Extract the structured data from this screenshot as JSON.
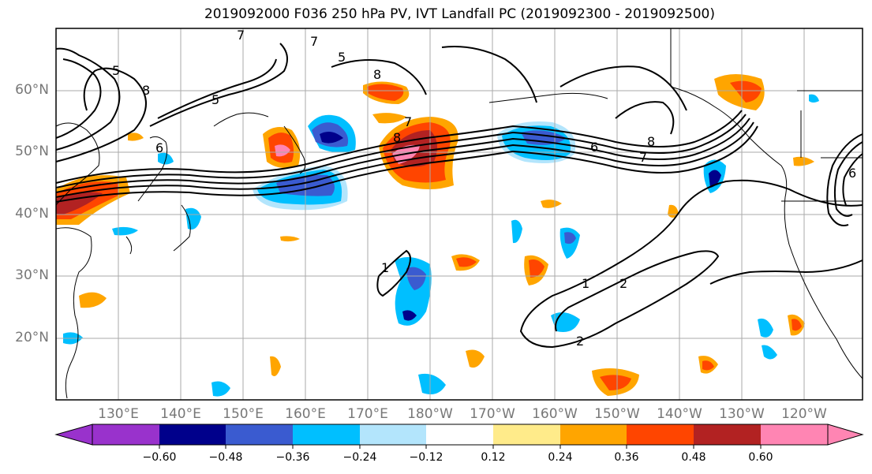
{
  "title": "2019092000 F036 250 hPa PV, IVT Landfall PC (2019092300 - 2019092500)",
  "lat_labels": [
    "60°N",
    "50°N",
    "40°N",
    "30°N",
    "20°N"
  ],
  "lon_labels": [
    "130°E",
    "140°E",
    "150°E",
    "160°E",
    "170°E",
    "180°W",
    "170°W",
    "160°W",
    "150°W",
    "140°W",
    "130°W",
    "120°W"
  ],
  "colorbar": {
    "colors": [
      "#9932cc",
      "#00008b",
      "#3a5bd0",
      "#00bfff",
      "#b3e5fc",
      "#ffffff",
      "#ffeb8a",
      "#ffa500",
      "#ff4500",
      "#b22222",
      "#ff85b3"
    ],
    "ticks": [
      "−0.60",
      "−0.48",
      "−0.36",
      "−0.24",
      "−0.12",
      "0.12",
      "0.24",
      "0.36",
      "0.48",
      "0.60"
    ]
  },
  "contour_labels": [
    "5",
    "5",
    "7",
    "5",
    "8",
    "8",
    "7",
    "7",
    "8",
    "7",
    "6",
    "6",
    "8",
    "6",
    "1",
    "1",
    "2",
    "2"
  ]
}
